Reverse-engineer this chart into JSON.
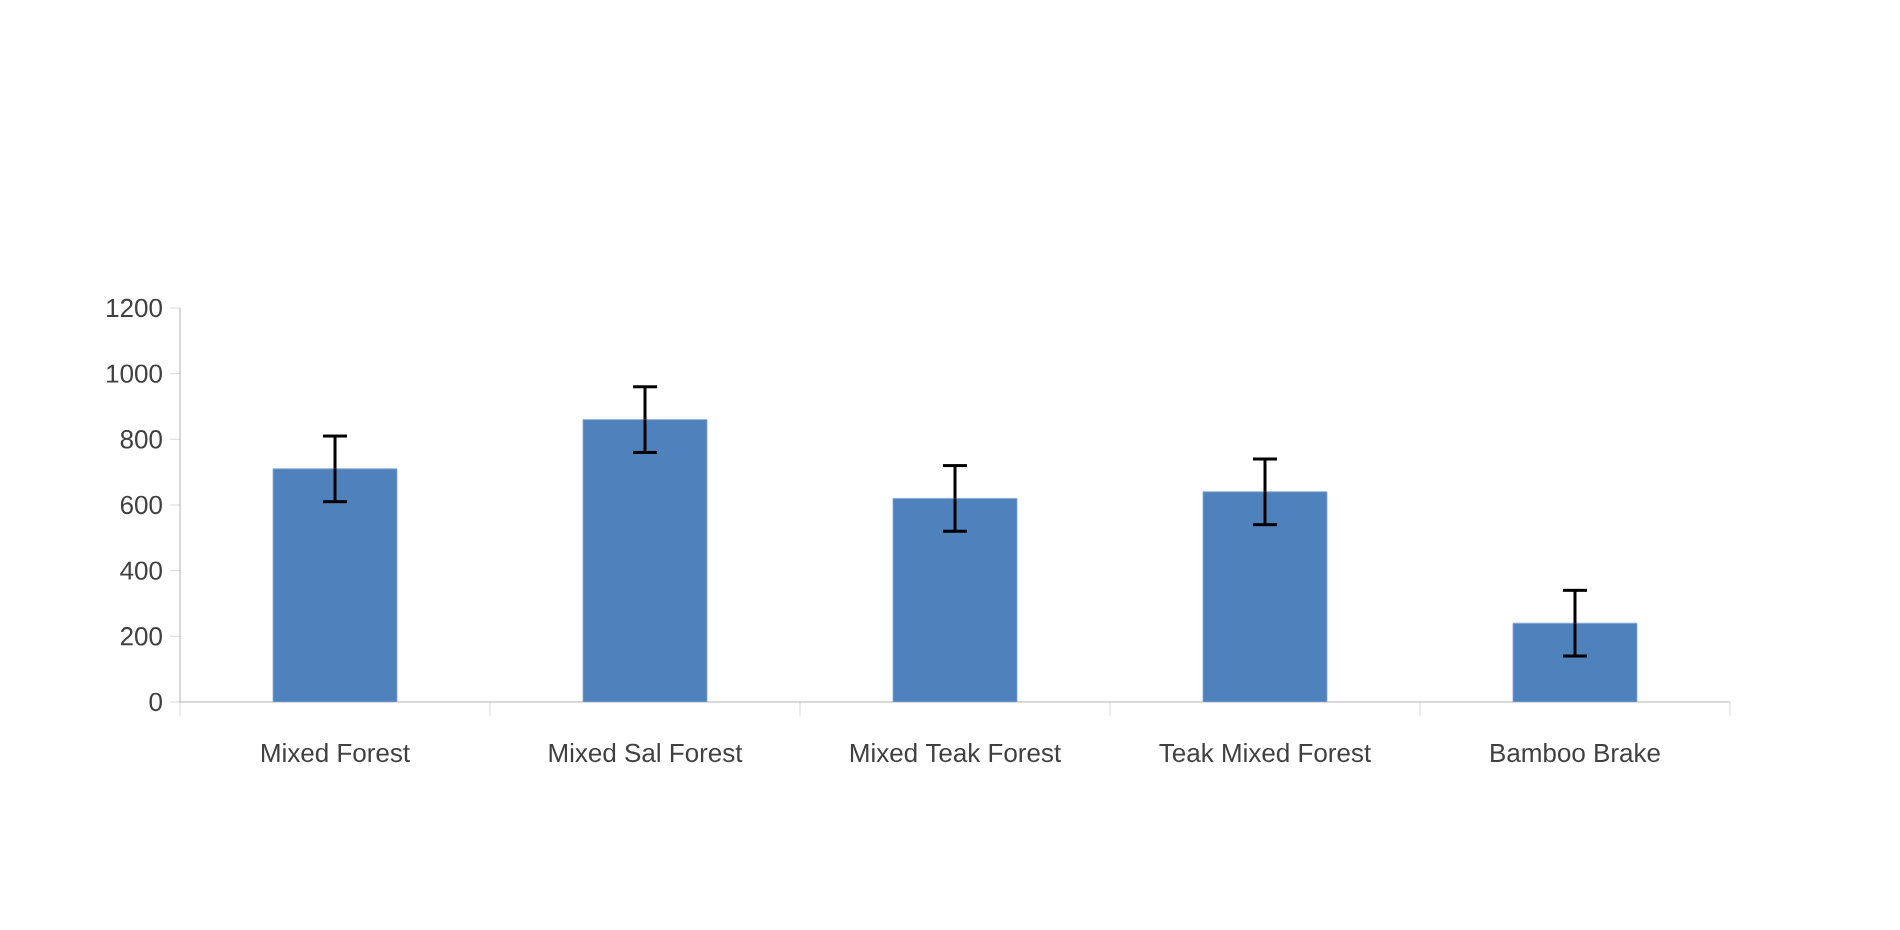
{
  "chart_data": {
    "type": "bar",
    "categories": [
      "Mixed Forest",
      "Mixed Sal Forest",
      "Mixed Teak Forest",
      "Teak Mixed Forest",
      "Bamboo Brake"
    ],
    "values": [
      710,
      860,
      620,
      640,
      240
    ],
    "errors": [
      100,
      100,
      100,
      100,
      100
    ],
    "color": "#4f81bd",
    "ylim": [
      0,
      1200
    ],
    "yticks": [
      0,
      200,
      400,
      600,
      800,
      1000,
      1200
    ],
    "grid": false
  }
}
